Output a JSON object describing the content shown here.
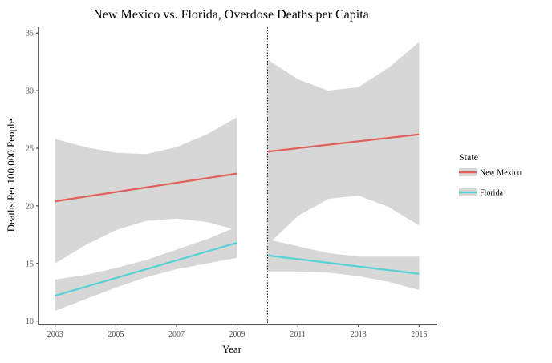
{
  "chart_data": {
    "type": "line",
    "title": "New Mexico vs. Florida, Overdose Deaths per Capita",
    "xlabel": "Year",
    "ylabel": "Deaths Per 100,000 People",
    "xlim": [
      2002.45,
      2015.6
    ],
    "ylim": [
      9.7,
      35.5
    ],
    "x_ticks": [
      2003,
      2005,
      2007,
      2009,
      2011,
      2013,
      2015
    ],
    "y_ticks": [
      10,
      15,
      20,
      25,
      30,
      35
    ],
    "grid": false,
    "cutoff_year": 2010,
    "cutoff_style": "dotted vertical line",
    "legend": {
      "title": "State",
      "placement": "right",
      "items": [
        {
          "label": "New Mexico",
          "color": "#E0605A"
        },
        {
          "label": "Florida",
          "color": "#56D1D6"
        }
      ]
    },
    "band_color": "#D7D7D7",
    "segments": [
      {
        "series": "New Mexico",
        "color": "#E0605A",
        "fit": [
          [
            2003,
            20.4
          ],
          [
            2009,
            22.8
          ]
        ],
        "band": {
          "x": [
            2003,
            2004,
            2005,
            2006,
            2007,
            2008,
            2009
          ],
          "upper": [
            25.8,
            25.1,
            24.6,
            24.5,
            25.1,
            26.2,
            27.7
          ],
          "lower": [
            15.0,
            16.6,
            17.9,
            18.7,
            18.9,
            18.6,
            17.9
          ]
        }
      },
      {
        "series": "Florida",
        "color": "#56D1D6",
        "fit": [
          [
            2003,
            12.2
          ],
          [
            2009,
            16.8
          ]
        ],
        "band": {
          "x": [
            2003,
            2004,
            2005,
            2006,
            2007,
            2008,
            2009
          ],
          "upper": [
            13.6,
            14.0,
            14.6,
            15.3,
            16.2,
            17.1,
            18.2
          ],
          "lower": [
            10.9,
            11.9,
            12.9,
            13.8,
            14.5,
            15.0,
            15.5
          ]
        }
      },
      {
        "series": "New Mexico",
        "color": "#E0605A",
        "fit": [
          [
            2010,
            24.7
          ],
          [
            2015,
            26.2
          ]
        ],
        "band": {
          "x": [
            2010,
            2011,
            2012,
            2013,
            2014,
            2015
          ],
          "upper": [
            32.7,
            31.0,
            30.0,
            30.3,
            32.0,
            34.2
          ],
          "lower": [
            16.6,
            19.1,
            20.6,
            20.9,
            19.9,
            18.3
          ]
        }
      },
      {
        "series": "Florida",
        "color": "#56D1D6",
        "fit": [
          [
            2010,
            15.7
          ],
          [
            2015,
            14.1
          ]
        ],
        "band": {
          "x": [
            2010,
            2011,
            2012,
            2013,
            2014,
            2015
          ],
          "upper": [
            17.1,
            16.5,
            15.9,
            15.6,
            15.6,
            15.6
          ],
          "lower": [
            14.3,
            14.3,
            14.2,
            13.9,
            13.4,
            12.7
          ]
        }
      }
    ]
  }
}
